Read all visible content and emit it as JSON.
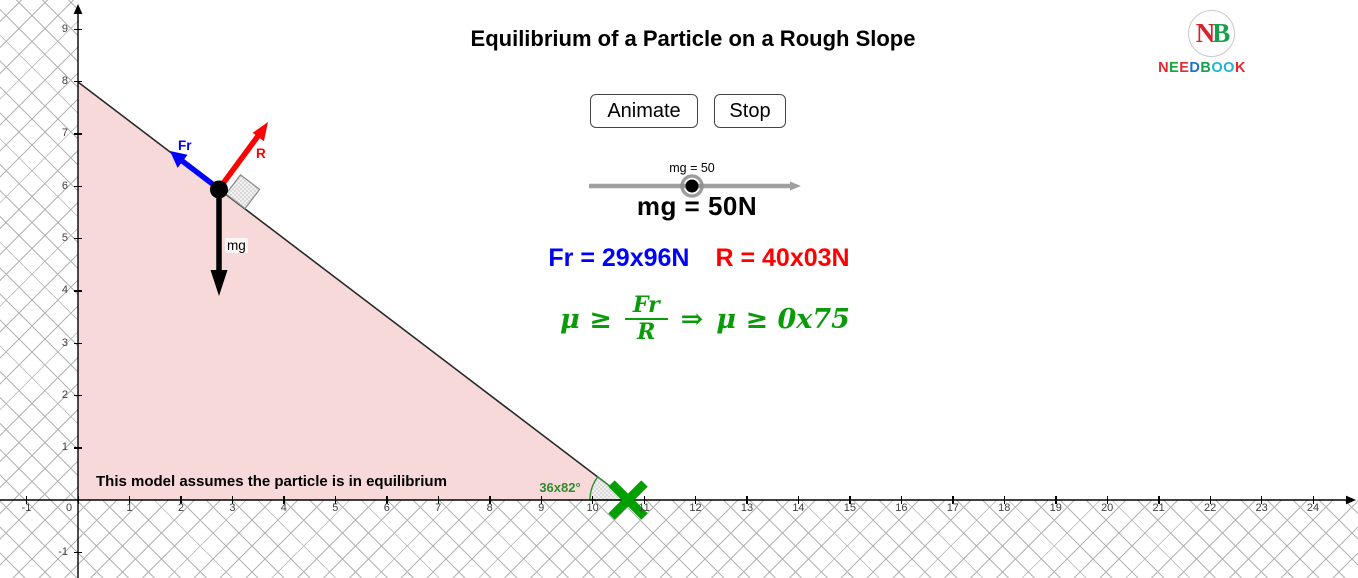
{
  "title": "Equilibrium of a Particle on a Rough Slope",
  "buttons": {
    "animate": "Animate",
    "stop": "Stop"
  },
  "slider": {
    "label": "mg = 50",
    "value_display": "mg = 50N"
  },
  "readouts": {
    "friction": "Fr = 29x96N",
    "normal": "R = 40x03N",
    "friction_color": "#0000ff",
    "normal_color": "#ff0000"
  },
  "formula": {
    "lhs": "μ ≥",
    "numerator": "Fr",
    "denominator": "R",
    "implies": "⇒",
    "rhs": "μ ≥ 0x75",
    "color": "#0a9a0a"
  },
  "diagram": {
    "note": "This model assumes the particle is in equilibrium",
    "angle_label": "36x82°",
    "labels": {
      "friction": "Fr",
      "normal": "R",
      "weight": "mg"
    },
    "colors": {
      "friction": "#0000ff",
      "normal": "#ff0000",
      "weight": "#000000",
      "angle": "#2e8b2e",
      "marker": "#00a000",
      "slope_fill": "#f8d9d9"
    }
  },
  "axes": {
    "x_ticks": [
      -1,
      0,
      1,
      2,
      3,
      4,
      5,
      6,
      7,
      8,
      9,
      10,
      11,
      12,
      13,
      14,
      15,
      16,
      17,
      18,
      19,
      20,
      21,
      22,
      23,
      24
    ],
    "y_ticks": [
      9,
      8,
      7,
      6,
      5,
      4,
      3,
      2,
      1,
      -1
    ]
  },
  "logo": {
    "monogram": [
      {
        "char": "N",
        "color": "#d8232a"
      },
      {
        "char": "B",
        "color": "#16a04c"
      }
    ],
    "word": [
      {
        "char": "N",
        "color": "#e8262c"
      },
      {
        "char": "E",
        "color": "#13a538"
      },
      {
        "char": "E",
        "color": "#d93038"
      },
      {
        "char": "D",
        "color": "#1d6fd2"
      },
      {
        "char": "B",
        "color": "#16a04c"
      },
      {
        "char": "O",
        "color": "#19b4d8"
      },
      {
        "char": "O",
        "color": "#19b4d8"
      },
      {
        "char": "K",
        "color": "#e8262c"
      }
    ]
  }
}
